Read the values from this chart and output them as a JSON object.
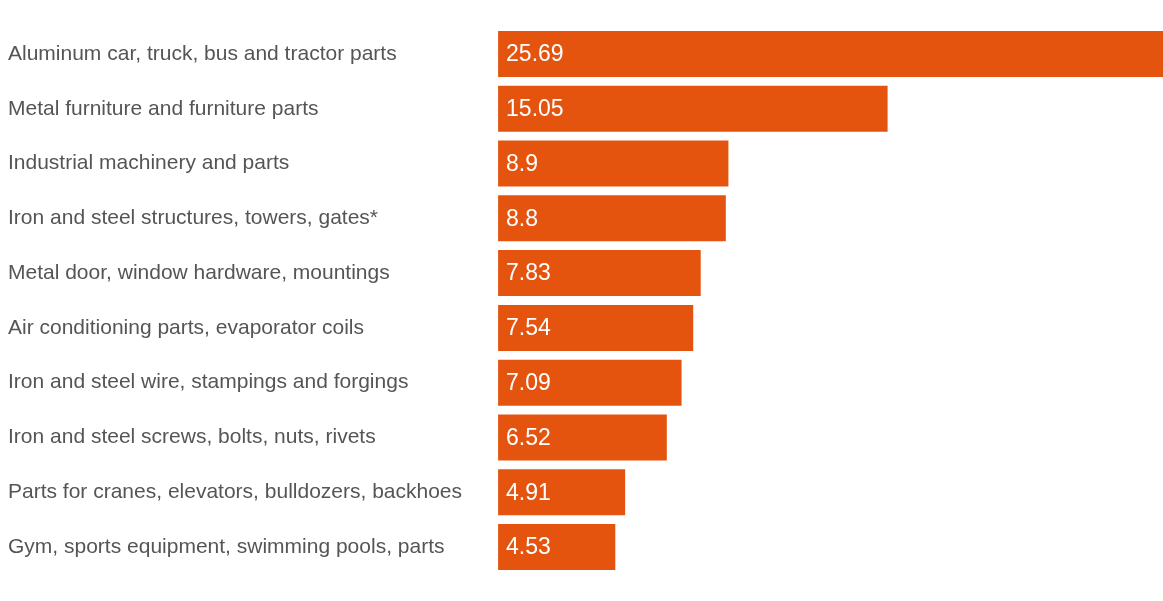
{
  "chart_data": {
    "type": "bar",
    "orientation": "horizontal",
    "categories": [
      "Aluminum car, truck, bus and tractor parts",
      "Metal furniture and furniture parts",
      "Industrial machinery and parts",
      "Iron and steel structures, towers, gates*",
      "Metal door, window hardware, mountings",
      "Air conditioning parts, evaporator coils",
      "Iron and steel wire, stampings and forgings",
      "Iron and steel screws, bolts, nuts, rivets",
      "Parts for cranes, elevators, bulldozers, backhoes",
      "Gym, sports equipment, swimming pools, parts"
    ],
    "values": [
      25.69,
      15.05,
      8.9,
      8.8,
      7.83,
      7.54,
      7.09,
      6.52,
      4.91,
      4.53
    ],
    "color": "#e4540f",
    "data_labels": true,
    "legend": false
  }
}
